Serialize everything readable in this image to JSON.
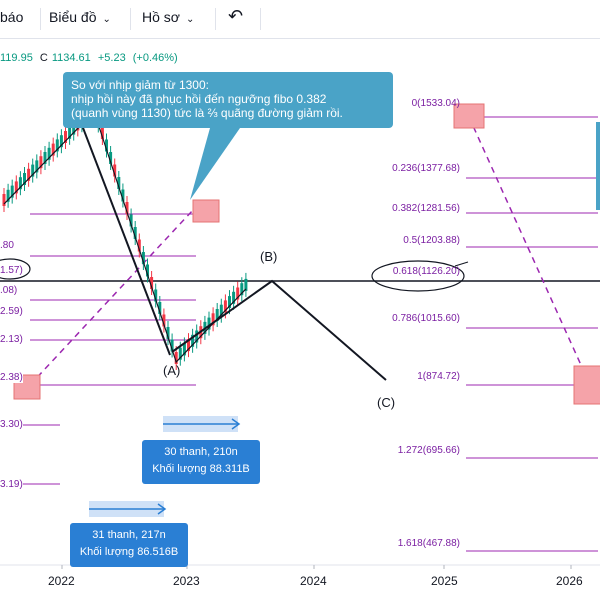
{
  "toolbar": {
    "item_1": "báo",
    "item_2": "Biểu đồ",
    "item_3": "Hồ sơ",
    "undo_icon": "undo-icon"
  },
  "ohlc": {
    "high_fragment": "119.95",
    "close_label": "C",
    "close_value": "1134.61",
    "change": "+5.23",
    "change_pct": "(+0.46%)"
  },
  "annotation": {
    "line1": "So với nhịp giảm từ 1300:",
    "line2": "nhịp hồi này đã phục hồi đến ngưỡng fibo 0.382",
    "line3": "(quanh vùng 1130) tức là ⅔ quãng đường giảm rồi."
  },
  "fib_levels": [
    {
      "label": "0(1533.04)"
    },
    {
      "label": "0.236(1377.68)"
    },
    {
      "label": "0.382(1281.56)"
    },
    {
      "label": "0.5(1203.88)"
    },
    {
      "label": "0.618(1126.20)"
    },
    {
      "label": "0.786(1015.60)"
    },
    {
      "label": "1(874.72)"
    },
    {
      "label": "1.272(695.66)"
    },
    {
      "label": "1.618(467.88)"
    }
  ],
  "left_labels": [
    ".80",
    "1.57)",
    ".08)",
    "2.59)",
    "2.13)",
    "2.38)",
    "3.30)",
    "3.19)"
  ],
  "waves": {
    "a": "(A)",
    "b": "(B)",
    "c": "(C)"
  },
  "ranges": [
    {
      "line1": "30 thanh, 210n",
      "line2": "Khối lượng 88.311B"
    },
    {
      "line1": "31 thanh, 217n",
      "line2": "Khối lượng 86.516B"
    }
  ],
  "x_axis": [
    "2022",
    "2023",
    "2024",
    "2025",
    "2026"
  ],
  "colors": {
    "up": "#089981",
    "down": "#f23645",
    "fib": "#9c27b0",
    "tip": "#4aa3c7",
    "box": "#2a7fd4",
    "marker": "#f5a3a9"
  }
}
